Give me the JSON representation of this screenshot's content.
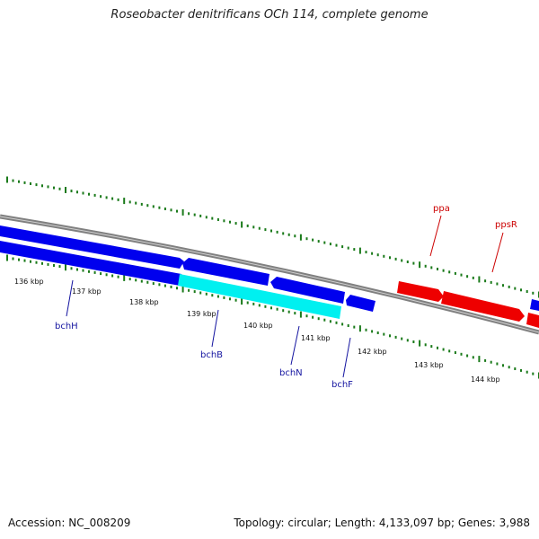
{
  "title": "Roseobacter denitrificans OCh 114, complete genome",
  "footer": {
    "accession": "Accession: NC_008209",
    "summary": "Topology: circular; Length: 4,133,097 bp; Genes: 3,988"
  },
  "colors": {
    "backbone": "#808080",
    "gene_blue": "#0000ee",
    "gene_cyan": "#00f0f0",
    "gene_red": "#ee0000",
    "tick": "#1a7a1a",
    "label_blue": "#1414a0",
    "label_red": "#cc0000"
  },
  "kbp_ticks": [
    "136 kbp",
    "137 kbp",
    "138 kbp",
    "139 kbp",
    "140 kbp",
    "141 kbp",
    "142 kbp",
    "143 kbp",
    "144 kbp"
  ],
  "gene_labels": [
    {
      "text": "bchH",
      "color_key": "label_blue"
    },
    {
      "text": "bchB",
      "color_key": "label_blue"
    },
    {
      "text": "bchN",
      "color_key": "label_blue"
    },
    {
      "text": "bchF",
      "color_key": "label_blue"
    },
    {
      "text": "ppa",
      "color_key": "label_red"
    },
    {
      "text": "ppsR",
      "color_key": "label_red"
    }
  ]
}
